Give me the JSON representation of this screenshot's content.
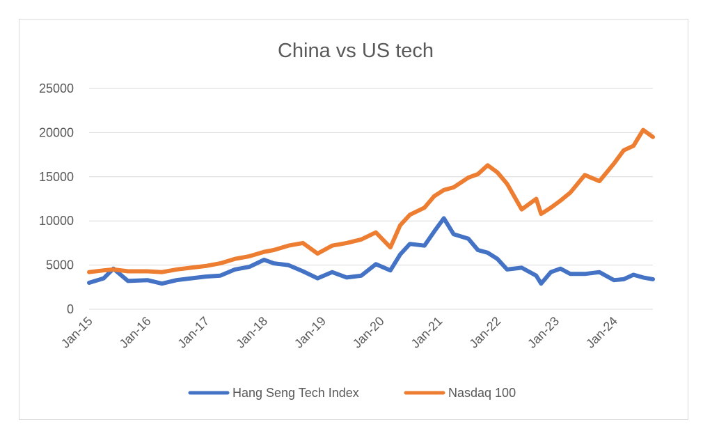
{
  "chart_data": {
    "type": "line",
    "title": "China vs US tech",
    "xlabel": "",
    "ylabel": "",
    "ylim": [
      0,
      25000
    ],
    "yticks": [
      0,
      5000,
      10000,
      15000,
      20000,
      25000
    ],
    "xticks": [
      "Jan-15",
      "Jan-16",
      "Jan-17",
      "Jan-18",
      "Jan-19",
      "Jan-20",
      "Jan-21",
      "Jan-22",
      "Jan-23",
      "Jan-24"
    ],
    "xlim": [
      "2015-01",
      "2024-09"
    ],
    "grid": true,
    "legend_position": "bottom",
    "x": [
      "2015-01",
      "2015-04",
      "2015-06",
      "2015-09",
      "2016-01",
      "2016-04",
      "2016-07",
      "2016-10",
      "2017-01",
      "2017-04",
      "2017-07",
      "2017-10",
      "2018-01",
      "2018-03",
      "2018-06",
      "2018-09",
      "2018-12",
      "2019-03",
      "2019-06",
      "2019-09",
      "2019-12",
      "2020-03",
      "2020-05",
      "2020-07",
      "2020-10",
      "2020-12",
      "2021-02",
      "2021-04",
      "2021-07",
      "2021-09",
      "2021-11",
      "2022-01",
      "2022-03",
      "2022-06",
      "2022-09",
      "2022-10",
      "2022-12",
      "2023-02",
      "2023-04",
      "2023-07",
      "2023-10",
      "2024-01",
      "2024-03",
      "2024-05",
      "2024-07",
      "2024-09"
    ],
    "series": [
      {
        "name": "Hang Seng Tech Index",
        "color": "#4472c4",
        "values": [
          3000,
          3500,
          4600,
          3200,
          3300,
          2900,
          3300,
          3500,
          3700,
          3800,
          4500,
          4800,
          5600,
          5200,
          5000,
          4300,
          3500,
          4200,
          3600,
          3800,
          5100,
          4400,
          6200,
          7400,
          7200,
          8800,
          10300,
          8500,
          8000,
          6700,
          6400,
          5700,
          4500,
          4700,
          3800,
          2900,
          4200,
          4600,
          4000,
          4000,
          4200,
          3300,
          3400,
          3900,
          3600,
          3400
        ]
      },
      {
        "name": "Nasdaq 100",
        "color": "#ed7d31",
        "values": [
          4200,
          4400,
          4500,
          4300,
          4300,
          4200,
          4500,
          4700,
          4900,
          5200,
          5700,
          6000,
          6500,
          6700,
          7200,
          7500,
          6300,
          7200,
          7500,
          7900,
          8700,
          7000,
          9500,
          10700,
          11500,
          12800,
          13500,
          13800,
          14900,
          15300,
          16300,
          15500,
          14200,
          11300,
          12500,
          10800,
          11500,
          12300,
          13200,
          15200,
          14500,
          16500,
          18000,
          18500,
          20300,
          19500
        ]
      }
    ]
  }
}
